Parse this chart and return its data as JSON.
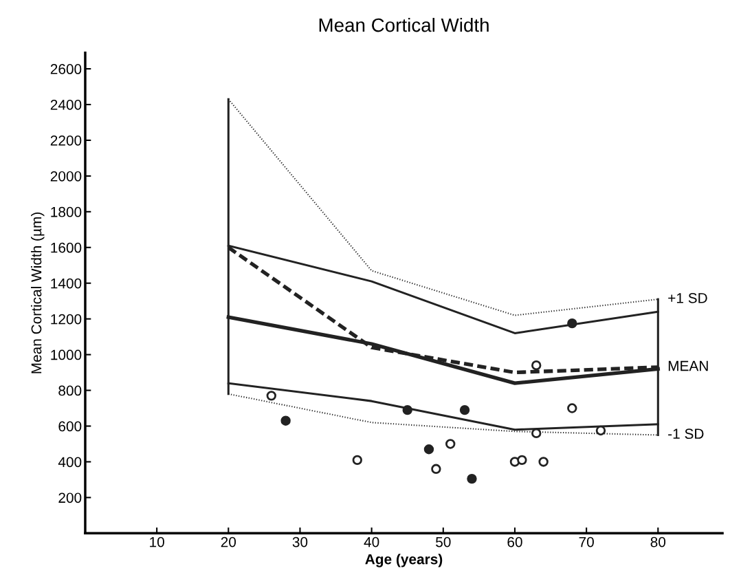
{
  "chart_data": {
    "type": "line",
    "title": "Mean Cortical Width",
    "xlabel": "Age (years)",
    "ylabel": "Mean Cortical Width (µm)",
    "xlim": [
      0,
      89
    ],
    "ylim": [
      0,
      2690
    ],
    "xticks": [
      10,
      20,
      30,
      40,
      50,
      60,
      70,
      80
    ],
    "yticks": [
      200,
      400,
      600,
      800,
      1000,
      1200,
      1400,
      1600,
      1800,
      2000,
      2200,
      2400,
      2600
    ],
    "grid": false,
    "legend": false,
    "marker": "none",
    "series": [
      {
        "color": "#222222",
        "line_style": "dotted",
        "x": [
          20,
          40,
          60,
          80
        ],
        "values": [
          2430,
          1470,
          1220,
          1310
        ]
      },
      {
        "color": "#222222",
        "line_style": "solid",
        "x": [
          20,
          40,
          60,
          80
        ],
        "values": [
          1610,
          1410,
          1120,
          1240
        ]
      },
      {
        "color": "#222222",
        "line_style": "solid",
        "x": [
          20,
          40,
          60,
          80
        ],
        "values": [
          1210,
          1060,
          840,
          920
        ]
      },
      {
        "color": "#222222",
        "line_style": "dashed",
        "x": [
          20,
          40,
          60,
          80
        ],
        "values": [
          1600,
          1040,
          900,
          930
        ]
      },
      {
        "color": "#222222",
        "line_style": "solid",
        "x": [
          20,
          40,
          60,
          80
        ],
        "values": [
          840,
          740,
          580,
          610
        ]
      },
      {
        "color": "#222222",
        "line_style": "dotted",
        "x": [
          20,
          40,
          60,
          80
        ],
        "values": [
          780,
          620,
          570,
          550
        ]
      },
      {
        "color": "#222222",
        "line_style": "solid",
        "x": [
          20,
          20
        ],
        "values": [
          780,
          2430
        ]
      },
      {
        "color": "#222222",
        "line_style": "solid",
        "x": [
          80,
          80
        ],
        "values": [
          550,
          1310
        ]
      },
      {
        "type": "scatter",
        "color": "#222222",
        "marker": "circle",
        "x": [
          26,
          38,
          49,
          51,
          60,
          61,
          63,
          63,
          64,
          68,
          72
        ],
        "values": [
          770,
          410,
          360,
          500,
          400,
          410,
          940,
          560,
          400,
          700,
          575
        ]
      },
      {
        "type": "scatter",
        "color": "#222222",
        "marker": "circle",
        "x": [
          28,
          45,
          48,
          53,
          54,
          68
        ],
        "values": [
          630,
          690,
          470,
          690,
          305,
          1175
        ]
      }
    ],
    "annotations": [
      "+1 SD",
      "MEAN",
      "-1 SD"
    ]
  }
}
